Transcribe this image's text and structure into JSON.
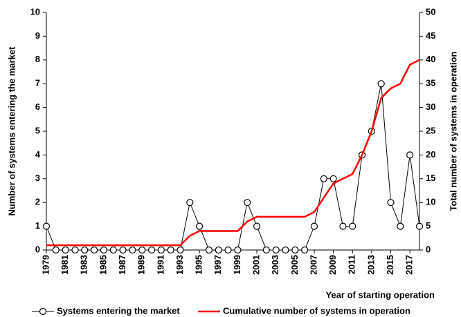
{
  "chart_data": {
    "type": "line",
    "x": [
      1979,
      1980,
      1981,
      1982,
      1983,
      1984,
      1985,
      1986,
      1987,
      1988,
      1989,
      1990,
      1991,
      1992,
      1993,
      1994,
      1995,
      1996,
      1997,
      1998,
      1999,
      2000,
      2001,
      2002,
      2003,
      2004,
      2005,
      2006,
      2007,
      2008,
      2009,
      2010,
      2011,
      2012,
      2013,
      2014,
      2015,
      2016,
      2017,
      2018
    ],
    "xlim": [
      1979,
      2018
    ],
    "xticks": [
      1979,
      1981,
      1983,
      1985,
      1987,
      1989,
      1991,
      1993,
      1995,
      1997,
      1999,
      2001,
      2003,
      2005,
      2007,
      2009,
      2011,
      2013,
      2015,
      2017
    ],
    "xlabel": "Year of starting operation",
    "ylabel": "Number of systems entering the market",
    "y2label": "Total number of systems in operation",
    "ylim": [
      0,
      10
    ],
    "yticks": [
      0,
      1,
      2,
      3,
      4,
      5,
      6,
      7,
      8,
      9,
      10
    ],
    "y2lim": [
      0,
      50
    ],
    "y2ticks": [
      0,
      5,
      10,
      15,
      20,
      25,
      30,
      35,
      40,
      45,
      50
    ],
    "series": [
      {
        "name": "Systems entering the market",
        "color": "#000000",
        "marker": "circle",
        "values": [
          1,
          0,
          0,
          0,
          0,
          0,
          0,
          0,
          0,
          0,
          0,
          0,
          0,
          0,
          0,
          2,
          1,
          0,
          0,
          0,
          0,
          2,
          1,
          0,
          0,
          0,
          0,
          0,
          1,
          3,
          3,
          1,
          1,
          4,
          5,
          7,
          2,
          1,
          4,
          1
        ]
      },
      {
        "name": "Cumulative number of systems in operation",
        "color": "#ff0000",
        "axis": "y2",
        "values": [
          1,
          1,
          1,
          1,
          1,
          1,
          1,
          1,
          1,
          1,
          1,
          1,
          1,
          1,
          1,
          3,
          4,
          4,
          4,
          4,
          4,
          6,
          7,
          7,
          7,
          7,
          7,
          7,
          8,
          11,
          14,
          15,
          16,
          20,
          25,
          32,
          34,
          35,
          39,
          40
        ]
      }
    ]
  }
}
